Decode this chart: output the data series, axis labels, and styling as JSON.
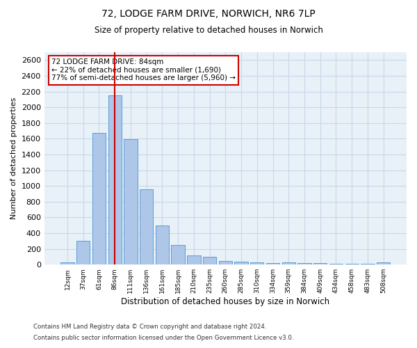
{
  "title": "72, LODGE FARM DRIVE, NORWICH, NR6 7LP",
  "subtitle": "Size of property relative to detached houses in Norwich",
  "xlabel": "Distribution of detached houses by size in Norwich",
  "ylabel": "Number of detached properties",
  "categories": [
    "12sqm",
    "37sqm",
    "61sqm",
    "86sqm",
    "111sqm",
    "136sqm",
    "161sqm",
    "185sqm",
    "210sqm",
    "235sqm",
    "260sqm",
    "285sqm",
    "310sqm",
    "334sqm",
    "359sqm",
    "384sqm",
    "409sqm",
    "434sqm",
    "458sqm",
    "483sqm",
    "508sqm"
  ],
  "values": [
    25,
    300,
    1670,
    2150,
    1590,
    960,
    500,
    250,
    120,
    100,
    50,
    40,
    30,
    20,
    25,
    20,
    20,
    15,
    15,
    10,
    25
  ],
  "bar_color": "#aec6e8",
  "bar_edge_color": "#5a9fd4",
  "vline_x_index": 3,
  "vline_color": "#cc0000",
  "annotation_line1": "72 LODGE FARM DRIVE: 84sqm",
  "annotation_line2": "← 22% of detached houses are smaller (1,690)",
  "annotation_line3": "77% of semi-detached houses are larger (5,960) →",
  "annotation_box_color": "#ffffff",
  "annotation_box_edge_color": "#cc0000",
  "ylim": [
    0,
    2700
  ],
  "yticks": [
    0,
    200,
    400,
    600,
    800,
    1000,
    1200,
    1400,
    1600,
    1800,
    2000,
    2200,
    2400,
    2600
  ],
  "grid_color": "#c8d8e8",
  "bg_color": "#e8f0f8",
  "footer1": "Contains HM Land Registry data © Crown copyright and database right 2024.",
  "footer2": "Contains public sector information licensed under the Open Government Licence v3.0."
}
